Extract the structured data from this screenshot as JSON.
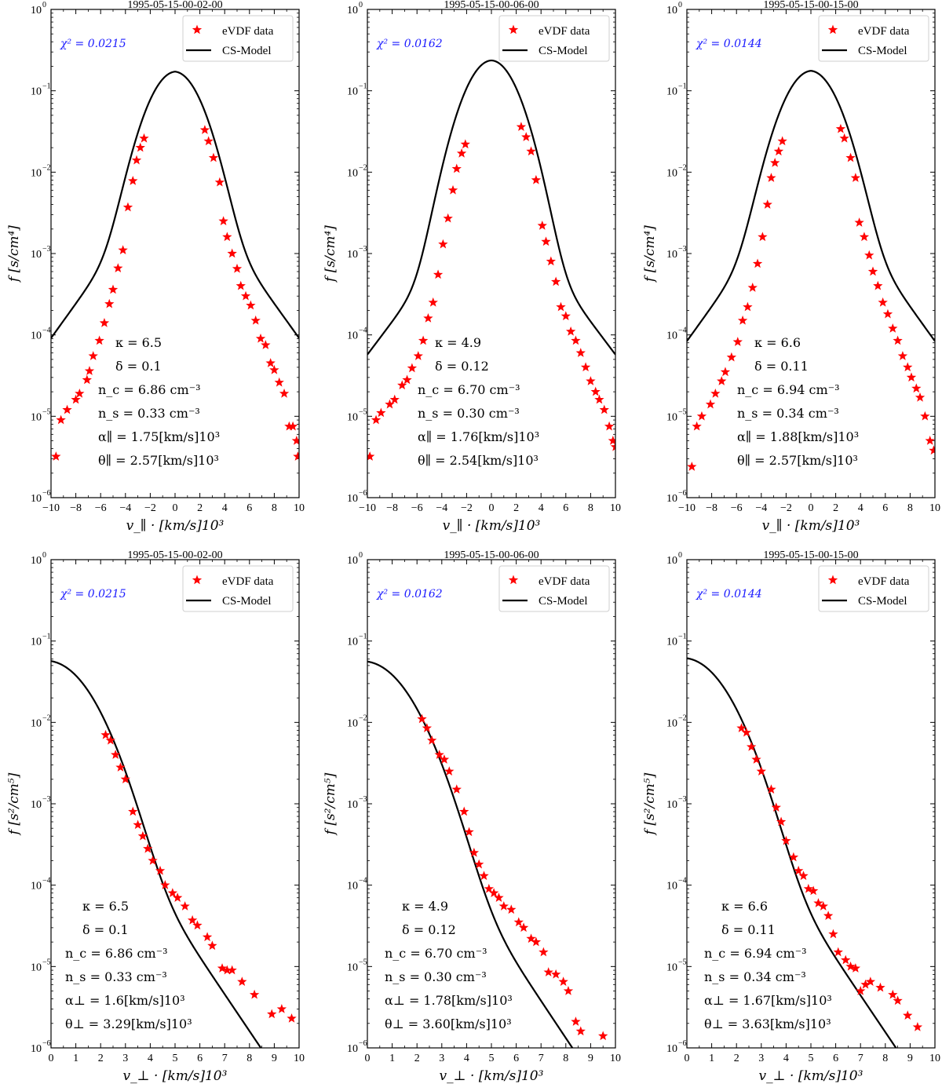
{
  "chart_data": [
    {
      "type": "scatter+line",
      "title": "1995-05-15-00-02-00",
      "xlabel": "v_∥ · [km/s]10³",
      "ylabel": "f [s/cm⁴]",
      "xlim": [
        -10,
        10
      ],
      "ylim": [
        1e-06,
        1
      ],
      "x_ticks": [
        "−10",
        "−8",
        "−6",
        "−4",
        "−2",
        "0",
        "2",
        "4",
        "6",
        "8",
        "10"
      ],
      "y_tick_exponents": [
        "−6",
        "−5",
        "−4",
        "−3",
        "−2",
        "−1",
        "0"
      ],
      "chi_label": "χ² = 0.0215",
      "legend": [
        "eVDF data",
        "CS-Model"
      ],
      "legend_position": "top-right",
      "annotations": [
        "κ = 6.5",
        "δ = 0.1",
        "n_c = 6.86 cm⁻³",
        "n_s = 0.33 cm⁻³",
        "α∥ = 1.75[km/s]10³",
        "θ∥ = 2.57[km/s]10³"
      ],
      "model": {
        "kind": "parallel",
        "peak": 0.16,
        "sigma": 1.6,
        "tail_amp": 0.012,
        "tail_scale": 2.05
      },
      "data": [
        [
          -9.6,
          3.2e-06
        ],
        [
          -9.2,
          9e-06
        ],
        [
          -8.7,
          1.2e-05
        ],
        [
          -8.0,
          1.6e-05
        ],
        [
          -7.7,
          1.9e-05
        ],
        [
          -7.1,
          2.8e-05
        ],
        [
          -6.9,
          3.6e-05
        ],
        [
          -6.6,
          5.5e-05
        ],
        [
          -6.1,
          8.5e-05
        ],
        [
          -5.7,
          0.00014
        ],
        [
          -5.3,
          0.00024
        ],
        [
          -5.0,
          0.00036
        ],
        [
          -4.6,
          0.00066
        ],
        [
          -4.2,
          0.0011
        ],
        [
          -3.8,
          0.0037
        ],
        [
          -3.4,
          0.0078
        ],
        [
          -3.1,
          0.014
        ],
        [
          -2.8,
          0.02
        ],
        [
          -2.5,
          0.026
        ],
        [
          2.4,
          0.033
        ],
        [
          2.7,
          0.024
        ],
        [
          3.1,
          0.015
        ],
        [
          3.6,
          0.0075
        ],
        [
          3.9,
          0.0025
        ],
        [
          4.2,
          0.0016
        ],
        [
          4.6,
          0.001
        ],
        [
          5.0,
          0.00065
        ],
        [
          5.3,
          0.0004
        ],
        [
          5.7,
          0.0003
        ],
        [
          6.1,
          0.00023
        ],
        [
          6.5,
          0.00015
        ],
        [
          6.9,
          9e-05
        ],
        [
          7.3,
          7.5e-05
        ],
        [
          7.7,
          4.5e-05
        ],
        [
          8.0,
          3.7e-05
        ],
        [
          8.4,
          2.6e-05
        ],
        [
          8.8,
          1.9e-05
        ],
        [
          9.2,
          7.5e-06
        ],
        [
          9.5,
          7.5e-06
        ],
        [
          9.8,
          5e-06
        ],
        [
          9.9,
          3.2e-06
        ]
      ]
    },
    {
      "type": "scatter+line",
      "title": "1995-05-15-00-06-00",
      "xlabel": "v_∥ · [km/s]10³",
      "ylabel": "f [s/cm⁴]",
      "xlim": [
        -10,
        10
      ],
      "ylim": [
        1e-06,
        1
      ],
      "x_ticks": [
        "−10",
        "−8",
        "−6",
        "−4",
        "−2",
        "0",
        "2",
        "4",
        "6",
        "8",
        "10"
      ],
      "y_tick_exponents": [
        "−6",
        "−5",
        "−4",
        "−3",
        "−2",
        "−1",
        "0"
      ],
      "chi_label": "χ² = 0.0162",
      "legend": [
        "eVDF data",
        "CS-Model"
      ],
      "legend_position": "top-right",
      "annotations": [
        "κ = 4.9",
        "δ = 0.12",
        "n_c = 6.70 cm⁻³",
        "n_s = 0.30 cm⁻³",
        "α∥ = 1.76[km/s]10³",
        "θ∥ = 2.54[km/s]10³"
      ],
      "model": {
        "kind": "parallel",
        "peak": 0.23,
        "sigma": 1.6,
        "tail_amp": 0.006,
        "tail_scale": 2.15
      },
      "data": [
        [
          -9.8,
          3.2e-06
        ],
        [
          -9.3,
          9e-06
        ],
        [
          -8.9,
          1.1e-05
        ],
        [
          -8.2,
          1.4e-05
        ],
        [
          -7.8,
          1.6e-05
        ],
        [
          -7.2,
          2.4e-05
        ],
        [
          -6.8,
          2.8e-05
        ],
        [
          -6.4,
          3.9e-05
        ],
        [
          -5.9,
          5.5e-05
        ],
        [
          -5.5,
          8.5e-05
        ],
        [
          -5.1,
          0.00016
        ],
        [
          -4.7,
          0.00025
        ],
        [
          -4.3,
          0.00055
        ],
        [
          -3.9,
          0.0013
        ],
        [
          -3.5,
          0.0027
        ],
        [
          -3.1,
          0.006
        ],
        [
          -2.8,
          0.011
        ],
        [
          -2.4,
          0.017
        ],
        [
          -2.1,
          0.022
        ],
        [
          2.4,
          0.036
        ],
        [
          2.8,
          0.027
        ],
        [
          3.2,
          0.018
        ],
        [
          3.6,
          0.008
        ],
        [
          4.1,
          0.0022
        ],
        [
          4.4,
          0.0014
        ],
        [
          4.8,
          0.0008
        ],
        [
          5.2,
          0.00045
        ],
        [
          5.6,
          0.00022
        ],
        [
          6.0,
          0.00017
        ],
        [
          6.4,
          0.00011
        ],
        [
          6.8,
          8.5e-05
        ],
        [
          7.2,
          6e-05
        ],
        [
          7.6,
          4e-05
        ],
        [
          8.0,
          2.7e-05
        ],
        [
          8.4,
          2e-05
        ],
        [
          8.7,
          1.6e-05
        ],
        [
          9.1,
          1.2e-05
        ],
        [
          9.5,
          7.5e-06
        ],
        [
          9.8,
          5e-06
        ],
        [
          10.0,
          4.2e-06
        ]
      ]
    },
    {
      "type": "scatter+line",
      "title": "1995-05-15-00-15-00",
      "xlabel": "v_∥ · [km/s]10³",
      "ylabel": "f [s/cm⁴]",
      "xlim": [
        -10,
        10
      ],
      "ylim": [
        1e-06,
        1
      ],
      "x_ticks": [
        "−10",
        "−8",
        "−6",
        "−4",
        "−2",
        "0",
        "2",
        "4",
        "6",
        "8",
        "10"
      ],
      "y_tick_exponents": [
        "−6",
        "−5",
        "−4",
        "−3",
        "−2",
        "−1",
        "0"
      ],
      "chi_label": "χ² = 0.0144",
      "legend": [
        "eVDF data",
        "CS-Model"
      ],
      "legend_position": "top-right",
      "annotations": [
        "κ = 6.6",
        "δ = 0.11",
        "n_c = 6.94 cm⁻³",
        "n_s = 0.34 cm⁻³",
        "α∥ = 1.88[km/s]10³",
        "θ∥ = 2.57[km/s]10³"
      ],
      "model": {
        "kind": "parallel",
        "peak": 0.165,
        "sigma": 1.65,
        "tail_amp": 0.011,
        "tail_scale": 2.05
      },
      "data": [
        [
          -9.6,
          2.4e-06
        ],
        [
          -9.2,
          7.5e-06
        ],
        [
          -8.8,
          1e-05
        ],
        [
          -8.1,
          1.4e-05
        ],
        [
          -7.7,
          1.9e-05
        ],
        [
          -7.2,
          2.7e-05
        ],
        [
          -6.9,
          3.5e-05
        ],
        [
          -6.4,
          5.3e-05
        ],
        [
          -5.9,
          8.2e-05
        ],
        [
          -5.5,
          0.00015
        ],
        [
          -5.1,
          0.00022
        ],
        [
          -4.7,
          0.00038
        ],
        [
          -4.3,
          0.00075
        ],
        [
          -3.9,
          0.0016
        ],
        [
          -3.5,
          0.004
        ],
        [
          -3.2,
          0.0085
        ],
        [
          -2.9,
          0.013
        ],
        [
          -2.6,
          0.018
        ],
        [
          -2.3,
          0.024
        ],
        [
          2.4,
          0.034
        ],
        [
          2.7,
          0.026
        ],
        [
          3.2,
          0.015
        ],
        [
          3.6,
          0.0085
        ],
        [
          3.9,
          0.0024
        ],
        [
          4.3,
          0.0016
        ],
        [
          4.7,
          0.00095
        ],
        [
          5.0,
          0.0006
        ],
        [
          5.4,
          0.0004
        ],
        [
          5.8,
          0.00025
        ],
        [
          6.2,
          0.00018
        ],
        [
          6.6,
          0.00012
        ],
        [
          7.0,
          8.5e-05
        ],
        [
          7.4,
          5.5e-05
        ],
        [
          7.8,
          4e-05
        ],
        [
          8.1,
          3e-05
        ],
        [
          8.5,
          2.2e-05
        ],
        [
          8.8,
          1.7e-05
        ],
        [
          9.2,
          1e-05
        ],
        [
          9.6,
          5e-06
        ],
        [
          9.9,
          3.8e-06
        ]
      ]
    },
    {
      "type": "scatter+line",
      "title": "1995-05-15-00-02-00",
      "xlabel": "v_⊥ · [km/s]10³",
      "ylabel": "f [s²/cm⁵]",
      "xlim": [
        0,
        10
      ],
      "ylim": [
        1e-06,
        1
      ],
      "x_ticks": [
        "0",
        "1",
        "2",
        "3",
        "4",
        "5",
        "6",
        "7",
        "8",
        "9",
        "10"
      ],
      "y_tick_exponents": [
        "−6",
        "−5",
        "−4",
        "−3",
        "−2",
        "−1",
        "0"
      ],
      "chi_label": "χ² = 0.0215",
      "legend": [
        "eVDF data",
        "CS-Model"
      ],
      "legend_position": "top-right",
      "annotations": [
        "κ = 6.5",
        "δ = 0.1",
        "n_c = 6.86 cm⁻³",
        "n_s = 0.33 cm⁻³",
        "α⊥ = 1.6[km/s]10³",
        "θ⊥ = 3.29[km/s]10³"
      ],
      "model": {
        "kind": "perp",
        "peak": 0.05,
        "sigma": 1.2,
        "tail_amp": 0.0067,
        "tail_scale": 0.96
      },
      "data": [
        [
          2.2,
          0.007
        ],
        [
          2.4,
          0.006
        ],
        [
          2.6,
          0.004
        ],
        [
          2.8,
          0.0028
        ],
        [
          3.0,
          0.002
        ],
        [
          3.3,
          0.0008
        ],
        [
          3.5,
          0.00055
        ],
        [
          3.7,
          0.0004
        ],
        [
          3.9,
          0.00028
        ],
        [
          4.1,
          0.0002
        ],
        [
          4.4,
          0.00015
        ],
        [
          4.6,
          0.0001
        ],
        [
          4.9,
          8e-05
        ],
        [
          5.1,
          7e-05
        ],
        [
          5.4,
          5.5e-05
        ],
        [
          5.7,
          3.7e-05
        ],
        [
          5.9,
          3.2e-05
        ],
        [
          6.3,
          2.3e-05
        ],
        [
          6.5,
          1.8e-05
        ],
        [
          6.9,
          9.5e-06
        ],
        [
          7.1,
          9e-06
        ],
        [
          7.3,
          9e-06
        ],
        [
          7.7,
          6.5e-06
        ],
        [
          8.2,
          4.5e-06
        ],
        [
          8.9,
          2.6e-06
        ],
        [
          9.3,
          3e-06
        ],
        [
          9.7,
          2.3e-06
        ]
      ]
    },
    {
      "type": "scatter+line",
      "title": "1995-05-15-00-06-00",
      "xlabel": "v_⊥ · [km/s]10³",
      "ylabel": "f [s²/cm⁵]",
      "xlim": [
        0,
        10
      ],
      "ylim": [
        1e-06,
        1
      ],
      "x_ticks": [
        "0",
        "1",
        "2",
        "3",
        "4",
        "5",
        "6",
        "7",
        "8",
        "9",
        "10"
      ],
      "y_tick_exponents": [
        "−6",
        "−5",
        "−4",
        "−3",
        "−2",
        "−1",
        "0"
      ],
      "chi_label": "χ² = 0.0162",
      "legend": [
        "eVDF data",
        "CS-Model"
      ],
      "legend_position": "top-right",
      "annotations": [
        "κ = 4.9",
        "δ = 0.12",
        "n_c = 6.70 cm⁻³",
        "n_s = 0.30 cm⁻³",
        "α⊥ = 1.78[km/s]10³",
        "θ⊥ = 3.60[km/s]10³"
      ],
      "model": {
        "kind": "perp",
        "peak": 0.05,
        "sigma": 1.25,
        "tail_amp": 0.006,
        "tail_scale": 0.95
      },
      "data": [
        [
          2.2,
          0.011
        ],
        [
          2.4,
          0.0085
        ],
        [
          2.6,
          0.006
        ],
        [
          2.9,
          0.004
        ],
        [
          3.1,
          0.0035
        ],
        [
          3.3,
          0.0025
        ],
        [
          3.6,
          0.0015
        ],
        [
          3.9,
          0.0008
        ],
        [
          4.1,
          0.00045
        ],
        [
          4.3,
          0.00025
        ],
        [
          4.5,
          0.00018
        ],
        [
          4.7,
          0.00013
        ],
        [
          4.9,
          9e-05
        ],
        [
          5.1,
          8e-05
        ],
        [
          5.3,
          7e-05
        ],
        [
          5.5,
          5.5e-05
        ],
        [
          5.8,
          5e-05
        ],
        [
          6.1,
          3.5e-05
        ],
        [
          6.3,
          3e-05
        ],
        [
          6.6,
          2.2e-05
        ],
        [
          6.8,
          2e-05
        ],
        [
          7.1,
          1.5e-05
        ],
        [
          7.3,
          8.5e-06
        ],
        [
          7.6,
          8e-06
        ],
        [
          7.9,
          6.5e-06
        ],
        [
          8.1,
          5e-06
        ],
        [
          8.4,
          2.1e-06
        ],
        [
          8.6,
          1.6e-06
        ],
        [
          9.5,
          1.4e-06
        ]
      ]
    },
    {
      "type": "scatter+line",
      "title": "1995-05-15-00-15-00",
      "xlabel": "v_⊥ · [km/s]10³",
      "ylabel": "f [s²/cm⁵]",
      "xlim": [
        0,
        10
      ],
      "ylim": [
        1e-06,
        1
      ],
      "x_ticks": [
        "0",
        "1",
        "2",
        "3",
        "4",
        "5",
        "6",
        "7",
        "8",
        "9",
        "10"
      ],
      "y_tick_exponents": [
        "−6",
        "−5",
        "−4",
        "−3",
        "−2",
        "−1",
        "0"
      ],
      "chi_label": "χ² = 0.0144",
      "legend": [
        "eVDF data",
        "CS-Model"
      ],
      "legend_position": "top-right",
      "annotations": [
        "κ = 6.6",
        "δ = 0.11",
        "n_c = 6.94 cm⁻³",
        "n_s = 0.34 cm⁻³",
        "α⊥ = 1.67[km/s]10³",
        "θ⊥ = 3.63[km/s]10³"
      ],
      "model": {
        "kind": "perp",
        "peak": 0.055,
        "sigma": 1.2,
        "tail_amp": 0.0065,
        "tail_scale": 0.96
      },
      "data": [
        [
          2.2,
          0.0085
        ],
        [
          2.4,
          0.0075
        ],
        [
          2.6,
          0.005
        ],
        [
          2.8,
          0.0035
        ],
        [
          3.0,
          0.0025
        ],
        [
          3.4,
          0.0015
        ],
        [
          3.6,
          0.0009
        ],
        [
          3.8,
          0.0006
        ],
        [
          4.0,
          0.00035
        ],
        [
          4.3,
          0.00022
        ],
        [
          4.5,
          0.00015
        ],
        [
          4.7,
          0.00013
        ],
        [
          4.9,
          9e-05
        ],
        [
          5.1,
          8.5e-05
        ],
        [
          5.3,
          6e-05
        ],
        [
          5.5,
          5.5e-05
        ],
        [
          5.7,
          4.2e-05
        ],
        [
          5.9,
          2.5e-05
        ],
        [
          6.1,
          1.5e-05
        ],
        [
          6.4,
          1.2e-05
        ],
        [
          6.6,
          1e-05
        ],
        [
          6.8,
          9.5e-06
        ],
        [
          7.0,
          5e-06
        ],
        [
          7.2,
          6e-06
        ],
        [
          7.4,
          6.5e-06
        ],
        [
          7.8,
          5.5e-06
        ],
        [
          8.3,
          4.5e-06
        ],
        [
          8.5,
          3.8e-06
        ],
        [
          8.9,
          2.5e-06
        ],
        [
          9.3,
          1.8e-06
        ]
      ]
    }
  ]
}
